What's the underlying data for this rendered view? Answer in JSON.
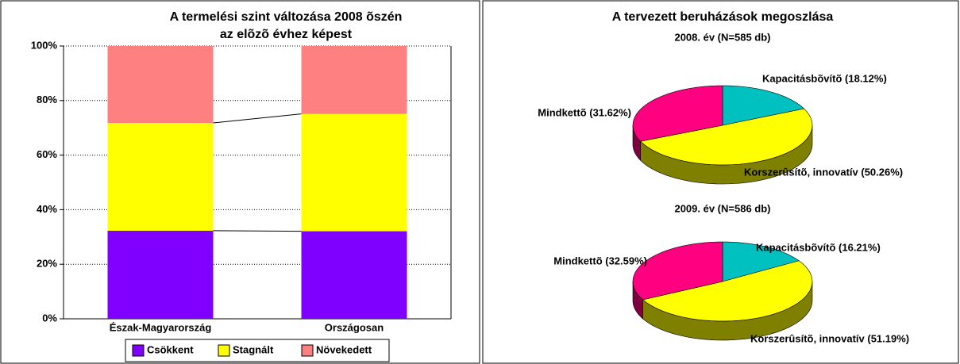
{
  "chart_data": [
    {
      "type": "bar",
      "stacked": true,
      "title": [
        "A termelési szint változása 2008 õszén",
        "az elõzõ évhez képest"
      ],
      "categories": [
        "Észak-Magyarország",
        "Országosan"
      ],
      "series": [
        {
          "name": "Csökkent",
          "color": "#8000ff",
          "values": [
            32.3,
            32.1
          ]
        },
        {
          "name": "Stagnált",
          "color": "#ffff00",
          "values": [
            39.5,
            43
          ]
        },
        {
          "name": "Növekedett",
          "color": "#ff8080",
          "values": [
            28.2,
            24.9
          ]
        }
      ],
      "ylim": [
        0,
        100
      ],
      "yticks": [
        {
          "value": 0,
          "label": "0%"
        },
        {
          "value": 20,
          "label": "20%"
        },
        {
          "value": 40,
          "label": "40%"
        },
        {
          "value": 60,
          "label": "60%"
        },
        {
          "value": 80,
          "label": "80%"
        },
        {
          "value": 100,
          "label": "100%"
        }
      ],
      "grid": true,
      "legend": "bottom"
    },
    {
      "type": "pie",
      "title": "A tervezett beruházások megoszlása",
      "subtitle": "2008. év (N=585 db)",
      "values": [
        18.12,
        50.26,
        31.62
      ],
      "value_labels": [
        "Kapacitásbõvítõ (18.12%)",
        "Korszerûsítõ, innovatív (50.26%)",
        "Mindkettõ (31.62%)"
      ],
      "colors": [
        "#00c0c0",
        "#ffff00",
        "#ff0080"
      ]
    },
    {
      "type": "pie",
      "subtitle": "2009. év (N=586 db)",
      "values": [
        16.21,
        51.19,
        32.59
      ],
      "value_labels": [
        "Kapacitásbõvítõ (16.21%)",
        "Korszerûsítõ, innovatív (51.19%)",
        "Mindkettõ (32.59%)"
      ],
      "colors": [
        "#00c0c0",
        "#ffff00",
        "#ff0080"
      ]
    }
  ]
}
